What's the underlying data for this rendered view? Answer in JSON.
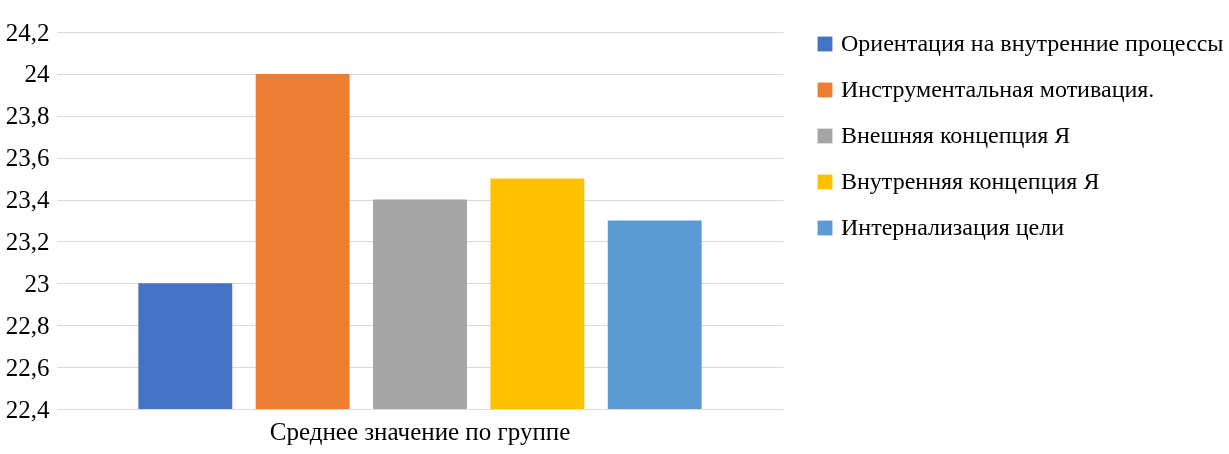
{
  "chart_data": {
    "type": "bar",
    "categories": [
      "Среднее значение по группе"
    ],
    "series": [
      {
        "name": "Ориентация на внутренние процессы",
        "color": "#4472c4",
        "values": [
          23
        ]
      },
      {
        "name": "Инструментальная мотивация.",
        "color": "#ed7d31",
        "values": [
          24
        ]
      },
      {
        "name": "Внешняя концепция Я",
        "color": "#a5a5a5",
        "values": [
          23.4
        ]
      },
      {
        "name": "Внутренняя концепция Я",
        "color": "#ffc000",
        "values": [
          23.5
        ]
      },
      {
        "name": "Интернализация цели",
        "color": "#5b9bd5",
        "values": [
          23.3
        ]
      }
    ],
    "ylim": [
      22.4,
      24.2
    ],
    "yticks": [
      {
        "value": 22.4,
        "label": "22,4"
      },
      {
        "value": 22.6,
        "label": "22,6"
      },
      {
        "value": 22.8,
        "label": "22,8"
      },
      23,
      {
        "value": 23.2,
        "label": "23,2"
      },
      {
        "value": 23.4,
        "label": "23,4"
      },
      {
        "value": 23.6,
        "label": "23,6"
      },
      {
        "value": 23.8,
        "label": "23,8"
      },
      24,
      {
        "value": 24.2,
        "label": "24,2"
      }
    ],
    "grid": "y",
    "legend": "right"
  }
}
